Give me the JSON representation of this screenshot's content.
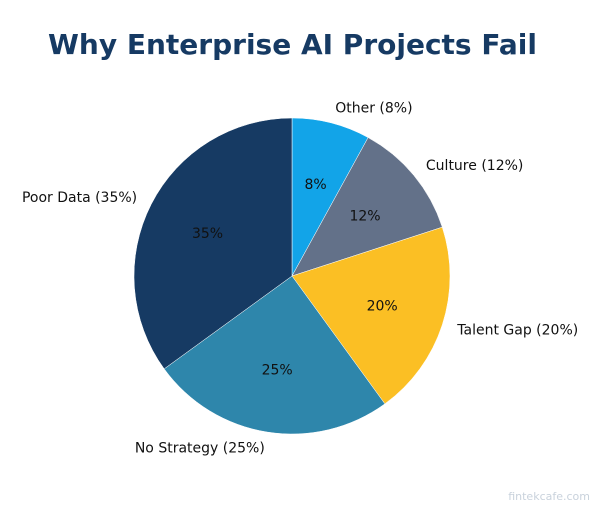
{
  "chart_data": {
    "type": "pie",
    "title": "Why Enterprise AI Projects Fail",
    "start": "top",
    "direction": "clockwise",
    "slices": [
      {
        "label": "Other (8%)",
        "value": 8,
        "pct_label": "8%",
        "color": "#12a4e8"
      },
      {
        "label": "Culture (12%)",
        "value": 12,
        "pct_label": "12%",
        "color": "#637189"
      },
      {
        "label": "Talent Gap (20%)",
        "value": 20,
        "pct_label": "20%",
        "color": "#fbbf24"
      },
      {
        "label": "No Strategy (25%)",
        "value": 25,
        "pct_label": "25%",
        "color": "#2e86ab"
      },
      {
        "label": "Poor Data (35%)",
        "value": 35,
        "pct_label": "35%",
        "color": "#163a63"
      }
    ]
  },
  "watermark": "fintekcafe.com",
  "colors": {
    "title": "#163a63"
  }
}
